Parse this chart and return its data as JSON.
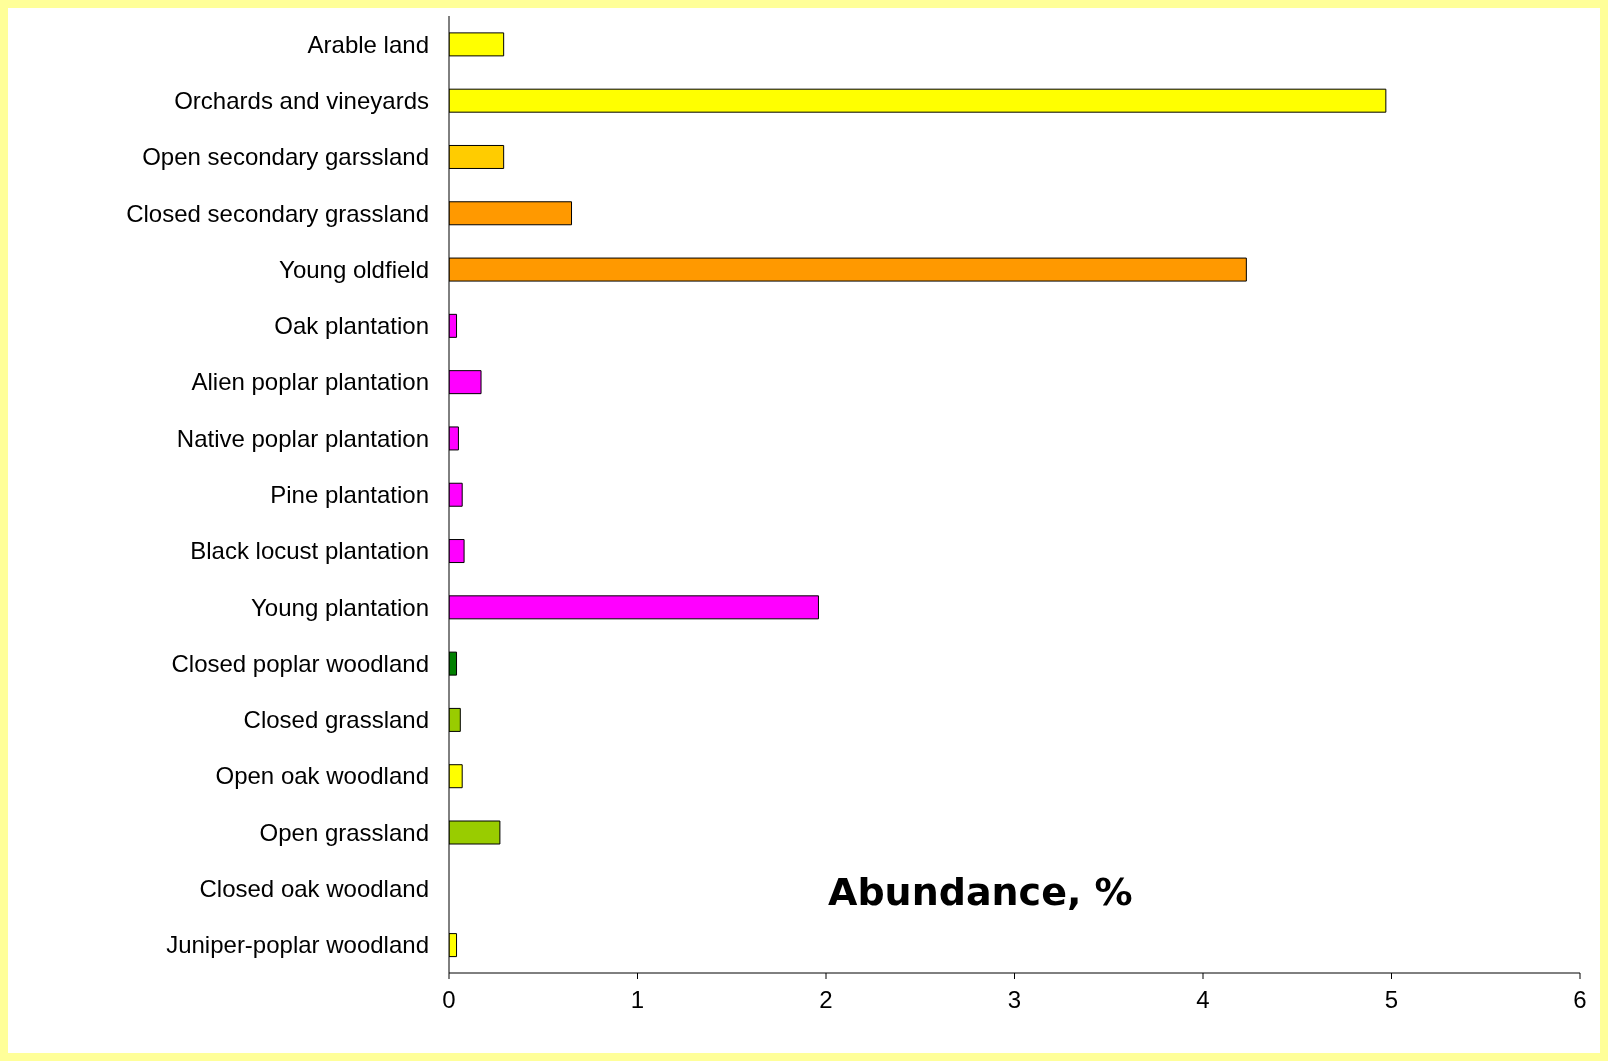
{
  "chart_data": {
    "type": "bar",
    "orientation": "horizontal",
    "xlabel": "Abundance, %",
    "categories": [
      "Arable land",
      "Orchards and vineyards",
      "Open secondary garssland",
      "Closed secondary grassland",
      "Young oldfield",
      "Oak plantation",
      "Alien poplar plantation",
      "Native poplar plantation",
      "Pine plantation",
      "Black locust plantation",
      "Young plantation",
      "Closed poplar woodland",
      "Closed grassland",
      "Open oak woodland",
      "Open grassland",
      "Closed oak woodland",
      "Juniper-poplar woodland"
    ],
    "values": [
      0.29,
      4.97,
      0.29,
      0.65,
      4.23,
      0.04,
      0.17,
      0.05,
      0.07,
      0.08,
      1.96,
      0.04,
      0.06,
      0.07,
      0.27,
      0,
      0.04
    ],
    "colors": [
      "#ffff00",
      "#ffff00",
      "#ffcc00",
      "#ff9900",
      "#ff9900",
      "#ff00ff",
      "#ff00ff",
      "#ff00ff",
      "#ff00ff",
      "#ff00ff",
      "#ff00ff",
      "#008000",
      "#99cc00",
      "#ffff00",
      "#99cc00",
      "#ffff00",
      "#ffff00"
    ],
    "xlim": [
      0,
      6
    ],
    "xticks": [
      0,
      1,
      2,
      3,
      4,
      5,
      6
    ],
    "grid": false
  }
}
